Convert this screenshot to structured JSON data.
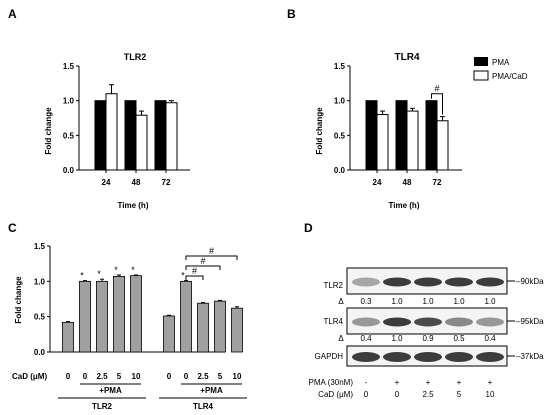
{
  "panels": {
    "A": {
      "letter": "A"
    },
    "B": {
      "letter": "B"
    },
    "C": {
      "letter": "C"
    },
    "D": {
      "letter": "D"
    }
  },
  "legend": {
    "items": [
      "PMA",
      "PMA/CaD"
    ]
  },
  "chart_data": [
    {
      "type": "bar",
      "panel": "A",
      "title": "TLR2",
      "xlabel": "Time (h)",
      "ylabel": "Fold change",
      "categories": [
        "24",
        "48",
        "72"
      ],
      "series": [
        {
          "name": "PMA",
          "values": [
            1.0,
            1.0,
            1.0
          ],
          "errors": [
            0,
            0,
            0
          ],
          "color": "#000000"
        },
        {
          "name": "PMA/CaD",
          "values": [
            1.1,
            0.79,
            0.97
          ],
          "errors": [
            0.13,
            0.06,
            0.03
          ],
          "color": "#ffffff"
        }
      ],
      "ylim": [
        0,
        1.5
      ],
      "yticks": [
        "0.0",
        "0.5",
        "1.0",
        "1.5"
      ],
      "legend": "none"
    },
    {
      "type": "bar",
      "panel": "B",
      "title": "TLR4",
      "xlabel": "Time (h)",
      "ylabel": "Fold change",
      "categories": [
        "24",
        "48",
        "72"
      ],
      "series": [
        {
          "name": "PMA",
          "values": [
            1.0,
            1.0,
            1.0
          ],
          "errors": [
            0,
            0,
            0
          ],
          "color": "#000000"
        },
        {
          "name": "PMA/CaD",
          "values": [
            0.8,
            0.85,
            0.71
          ],
          "errors": [
            0.05,
            0.04,
            0.06
          ],
          "color": "#ffffff"
        }
      ],
      "ylim": [
        0,
        1.5
      ],
      "yticks": [
        "0.0",
        "0.5",
        "1.0",
        "1.5"
      ],
      "annotations": [
        {
          "text": "#",
          "category": "72"
        }
      ],
      "legend": "right"
    },
    {
      "type": "bar",
      "panel": "C",
      "xlabel": "CaD (μM)",
      "ylabel": "Fold change",
      "groups": [
        {
          "label": "TLR2",
          "pma_label": "+PMA",
          "categories": [
            "0",
            "0",
            "2.5",
            "5",
            "10"
          ],
          "pma": [
            false,
            true,
            true,
            true,
            true
          ],
          "values": [
            0.42,
            1.0,
            1.0,
            1.07,
            1.08
          ],
          "errors": [
            0.01,
            0.01,
            0.03,
            0.02,
            0.01
          ],
          "marks": [
            "",
            "*",
            "*",
            "*",
            "*"
          ]
        },
        {
          "label": "TLR4",
          "pma_label": "+PMA",
          "categories": [
            "0",
            "0",
            "2.5",
            "5",
            "10"
          ],
          "pma": [
            false,
            true,
            true,
            true,
            true
          ],
          "values": [
            0.51,
            1.0,
            0.69,
            0.72,
            0.62
          ],
          "errors": [
            0.01,
            0.01,
            0.01,
            0.01,
            0.02
          ],
          "marks": [
            "",
            "*",
            "",
            "",
            ""
          ],
          "brackets": [
            "#",
            "#",
            "#"
          ]
        }
      ],
      "ylim": [
        0,
        1.5
      ],
      "yticks": [
        "0.0",
        "0.5",
        "1.0",
        "1.5"
      ],
      "color": "#a0a0a0"
    }
  ],
  "blot": {
    "bands": [
      {
        "name": "TLR2",
        "marker": "90kDa",
        "values": [
          "0.3",
          "1.0",
          "1.0",
          "1.0",
          "1.0"
        ],
        "intensities": [
          0.3,
          1.0,
          1.0,
          1.0,
          1.0
        ]
      },
      {
        "name": "TLR4",
        "marker": "95kDa",
        "values": [
          "0.4",
          "1.0",
          "0.9",
          "0.5",
          "0.4"
        ],
        "intensities": [
          0.4,
          1.0,
          0.9,
          0.5,
          0.4
        ]
      },
      {
        "name": "GAPDH",
        "marker": "37kDa",
        "values": [],
        "intensities": [
          1.0,
          1.0,
          1.0,
          1.0,
          1.0
        ]
      }
    ],
    "delta_symbol": "Δ",
    "treatments": [
      {
        "label": "PMA (30nM)",
        "values": [
          "-",
          "+",
          "+",
          "+",
          "+"
        ]
      },
      {
        "label": "CaD (μM)",
        "values": [
          "0",
          "0",
          "2.5",
          "5",
          "10"
        ]
      }
    ]
  }
}
